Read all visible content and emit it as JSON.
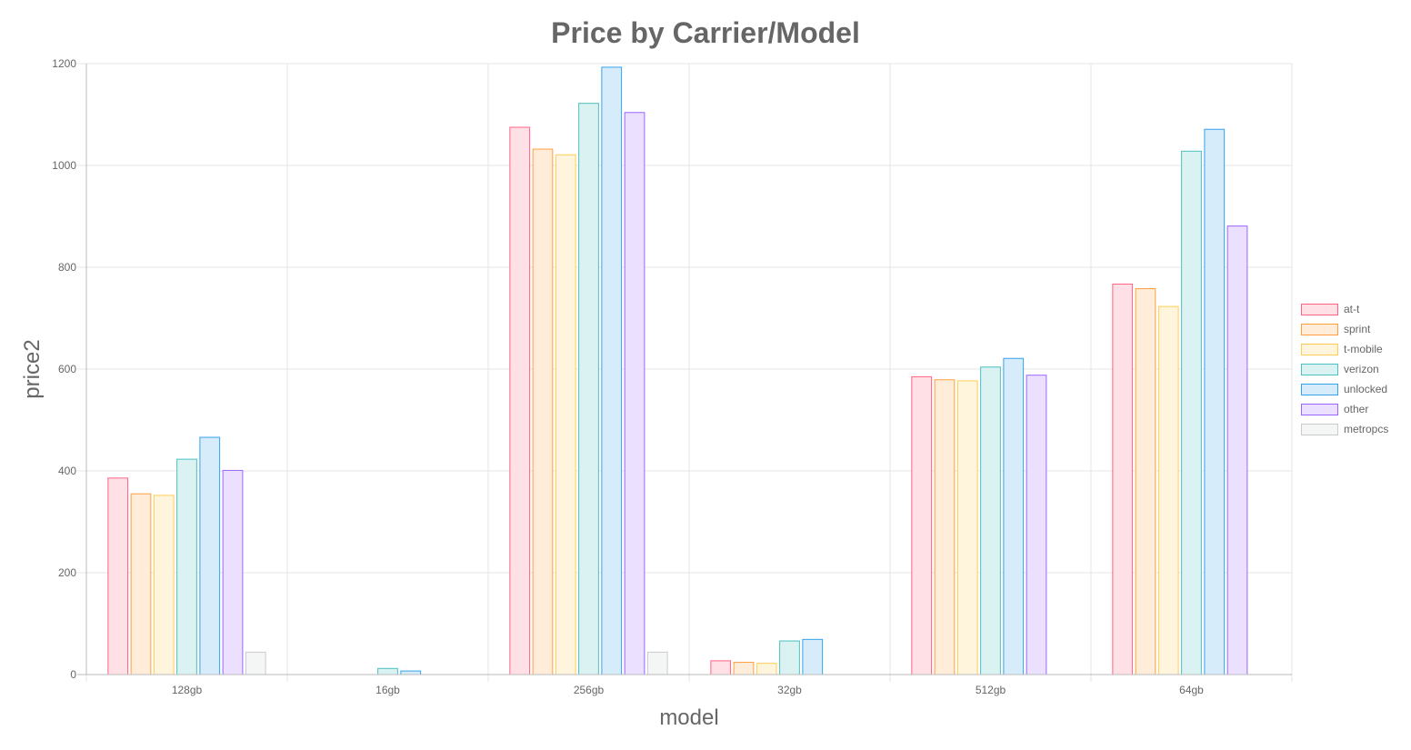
{
  "chart_data": {
    "type": "bar",
    "title": "Price by Carrier/Model",
    "xlabel": "model",
    "ylabel": "price2",
    "categories": [
      "128gb",
      "16gb",
      "256gb",
      "32gb",
      "512gb",
      "64gb"
    ],
    "ylim": [
      0,
      1200
    ],
    "yticks": [
      0,
      200,
      400,
      600,
      800,
      1000,
      1200
    ],
    "grid": true,
    "legend_position": "right",
    "series": [
      {
        "name": "at-t",
        "stroke": "#ff6384",
        "fill": "#ffe0e6",
        "values": [
          386,
          null,
          1075,
          27,
          585,
          767
        ]
      },
      {
        "name": "sprint",
        "stroke": "#ff9f40",
        "fill": "#ffecd9",
        "values": [
          355,
          null,
          1032,
          24,
          579,
          758
        ]
      },
      {
        "name": "t-mobile",
        "stroke": "#ffcd56",
        "fill": "#fff5dd",
        "values": [
          352,
          null,
          1021,
          22,
          577,
          723
        ]
      },
      {
        "name": "verizon",
        "stroke": "#4bc0c0",
        "fill": "#dbf2f2",
        "values": [
          423,
          12,
          1122,
          66,
          604,
          1028
        ]
      },
      {
        "name": "unlocked",
        "stroke": "#36a2eb",
        "fill": "#d7ecfb",
        "values": [
          466,
          7,
          1193,
          69,
          621,
          1071
        ]
      },
      {
        "name": "other",
        "stroke": "#9966ff",
        "fill": "#ebe0ff",
        "values": [
          401,
          null,
          1104,
          null,
          588,
          881
        ]
      },
      {
        "name": "metropcs",
        "stroke": "#c9cbcf",
        "fill": "#f4f5f5",
        "values": [
          44,
          null,
          44,
          null,
          null,
          null
        ]
      }
    ]
  }
}
